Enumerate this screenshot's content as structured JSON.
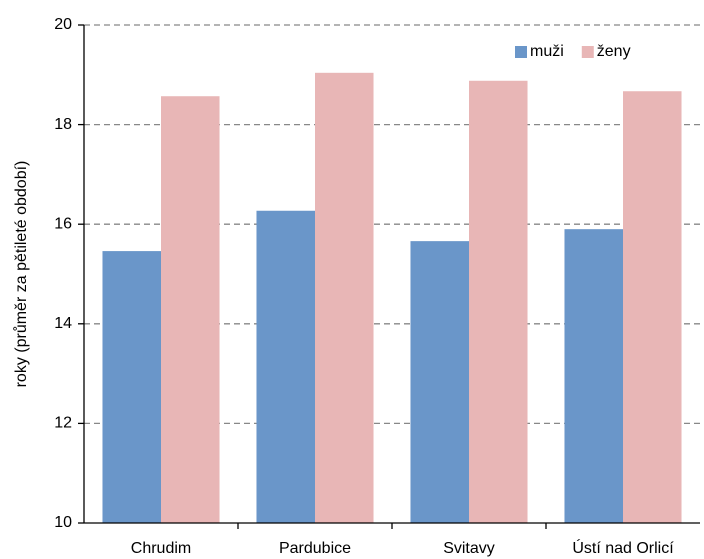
{
  "chart_data": {
    "type": "bar",
    "y_label": "roky (průměr za pětileté období)",
    "categories": [
      "Chrudim",
      "Pardubice",
      "Svitavy",
      "Ústí nad Orlicí"
    ],
    "series": [
      {
        "name": "muži",
        "color": "#6a96c9",
        "values": [
          15.46,
          16.27,
          15.66,
          15.9
        ]
      },
      {
        "name": "ženy",
        "color": "#e8b6b6",
        "values": [
          18.57,
          19.04,
          18.88,
          18.67
        ]
      }
    ],
    "ylim": [
      10,
      20
    ],
    "yticks": [
      10,
      12,
      14,
      16,
      18,
      20
    ],
    "grid": true,
    "legend": "top-right"
  }
}
